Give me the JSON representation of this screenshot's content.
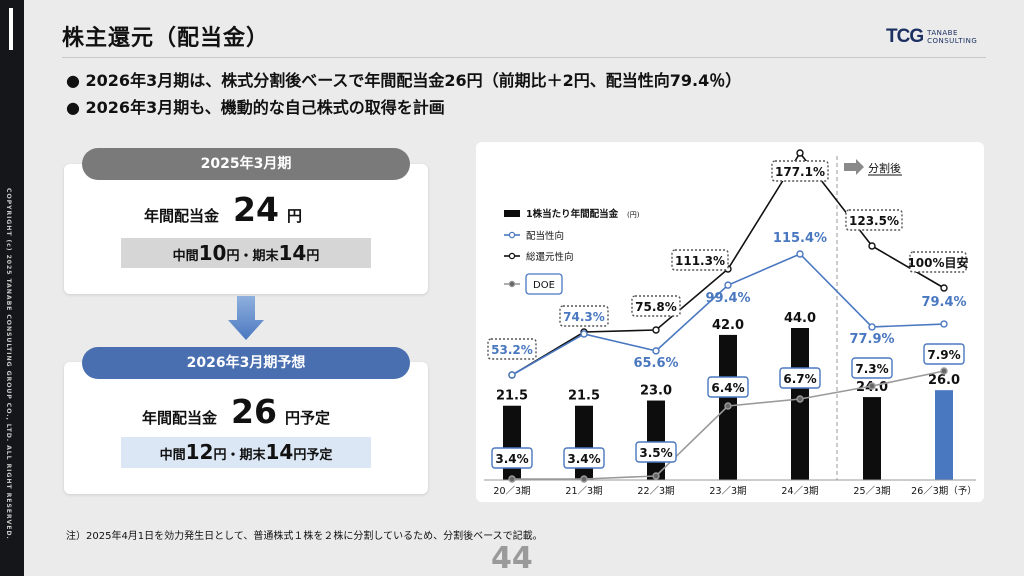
{
  "sidebar": {
    "copyright": "COPYRIGHT (c) 2025 TANABE CONSULTING GROUP CO., LTD. ALL RIGHT RESERVED."
  },
  "header": {
    "title": "株主還元（配当金）",
    "logo_mark": "TCG",
    "logo_line1": "TANABE",
    "logo_line2": "CONSULTING"
  },
  "bullets": [
    "● 2026年3月期は、株式分割後ベースで年間配当金26円（前期比＋2円、配当性向79.4％）",
    "● 2026年3月期も、機動的な自己株式の取得を計画"
  ],
  "card_2025": {
    "pill": "2025年3月期",
    "label": "年間配当金",
    "amount": "24",
    "unit": "円",
    "sub_a": "中間",
    "sub_a_num": "10",
    "sub_a_unit": "円・期末",
    "sub_b_num": "14",
    "sub_b_unit": "円"
  },
  "card_2026": {
    "pill": "2026年3月期予想",
    "label": "年間配当金",
    "amount": "26",
    "unit": "円予定",
    "sub_a": "中間",
    "sub_a_num": "12",
    "sub_a_unit": "円・期末",
    "sub_b_num": "14",
    "sub_b_unit": "円予定"
  },
  "colors": {
    "dark_pill": "#7a7a7a",
    "blue_pill": "#4a6fb0",
    "blue_line": "#4a78c0",
    "grey_line": "#9a9a9a",
    "bar_dark": "#0d0d0d",
    "bar_blue": "#4a78c0"
  },
  "note": "注）2025年4月1日を効力発生日として、普通株式１株を２株に分割しているため、分割後ベースで記載。",
  "page_number": "44",
  "chart_data": {
    "type": "bar",
    "categories": [
      "20／3期",
      "21／3期",
      "22／3期",
      "23／3期",
      "24／3期",
      "25／3期",
      "26／3期（予）"
    ],
    "series": [
      {
        "name": "1株当たり年間配当金",
        "unit": "(円)",
        "kind": "bar",
        "values": [
          21.5,
          21.5,
          23.0,
          42.0,
          44.0,
          24.0,
          26.0
        ],
        "labels": [
          "21.5",
          "21.5",
          "23.0",
          "42.0",
          "44.0",
          "24.0",
          "26.0"
        ]
      },
      {
        "name": "配当性向",
        "kind": "line",
        "values": [
          53.2,
          74.3,
          65.6,
          99.4,
          115.4,
          77.9,
          79.4
        ],
        "labels": [
          "53.2%",
          "74.3%",
          "65.6%",
          "99.4%",
          "115.4%",
          "77.9%",
          "79.4%"
        ]
      },
      {
        "name": "総還元性向",
        "kind": "line",
        "values": [
          53.2,
          74.3,
          75.8,
          111.3,
          177.1,
          123.5,
          100
        ],
        "labels": [
          "",
          "",
          "75.8%",
          "111.3%",
          "177.1%",
          "123.5%",
          "100%目安"
        ]
      },
      {
        "name": "DOE",
        "kind": "line",
        "values": [
          3.4,
          3.4,
          3.5,
          6.4,
          6.7,
          7.3,
          7.9
        ],
        "labels": [
          "3.4%",
          "3.4%",
          "3.5%",
          "6.4%",
          "6.7%",
          "7.3%",
          "7.9%"
        ]
      }
    ],
    "annotation": "分割後",
    "legend_position": "top-left"
  }
}
